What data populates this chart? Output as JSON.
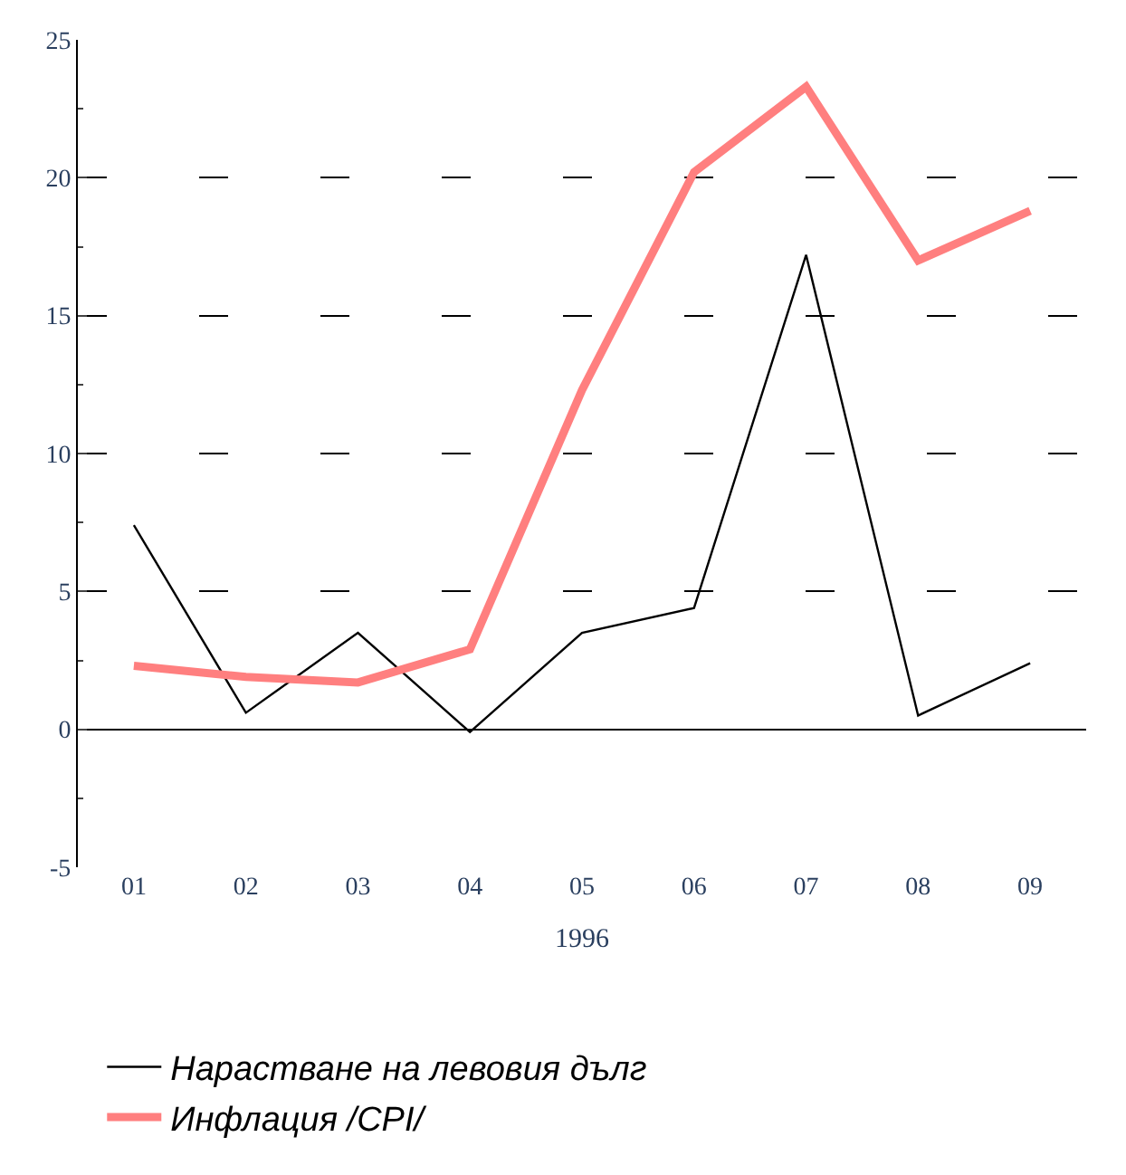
{
  "chart_data": {
    "type": "line",
    "xlabel": "1996",
    "categories": [
      "01",
      "02",
      "03",
      "04",
      "05",
      "06",
      "07",
      "08",
      "09"
    ],
    "series": [
      {
        "name": "Нарастване на левовия дълг",
        "color": "#000000",
        "values": [
          7.4,
          0.6,
          3.5,
          -0.1,
          3.5,
          4.4,
          17.2,
          0.5,
          2.4
        ]
      },
      {
        "name": "Инфлация /CPI/",
        "color": "#ff7f7f",
        "values": [
          2.3,
          1.9,
          1.7,
          2.9,
          12.3,
          20.2,
          23.3,
          17.0,
          18.8
        ]
      }
    ],
    "ylim": [
      -5,
      25
    ],
    "yticks": [
      -5,
      0,
      5,
      10,
      15,
      20,
      25
    ],
    "grid": "y",
    "legend": "bottom",
    "marker": "none",
    "line_style": "solid"
  }
}
